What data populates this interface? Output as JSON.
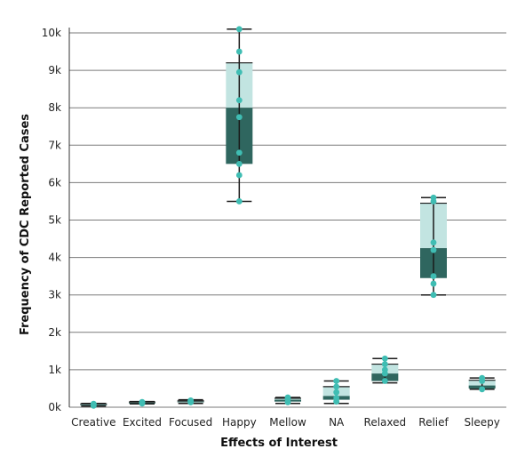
{
  "chart_data": {
    "type": "box",
    "xlabel": "Effects of Interest",
    "ylabel": "Frequency of CDC Reported Cases",
    "ylim": [
      0,
      10000
    ],
    "yticks": [
      {
        "value": 0,
        "label": "0k"
      },
      {
        "value": 1000,
        "label": "1k"
      },
      {
        "value": 2000,
        "label": "2k"
      },
      {
        "value": 3000,
        "label": "3k"
      },
      {
        "value": 4000,
        "label": "4k"
      },
      {
        "value": 5000,
        "label": "5k"
      },
      {
        "value": 6000,
        "label": "6k"
      },
      {
        "value": 7000,
        "label": "7k"
      },
      {
        "value": 8000,
        "label": "8k"
      },
      {
        "value": 9000,
        "label": "9k"
      },
      {
        "value": 10000,
        "label": "10k"
      }
    ],
    "grid": true,
    "categories": [
      "Creative",
      "Excited",
      "Focused",
      "Happy",
      "Mellow",
      "NA",
      "Relaxed",
      "Relief",
      "Sleepy"
    ],
    "boxes": [
      {
        "category": "Creative",
        "min": 30,
        "q1": 50,
        "median": 70,
        "q3": 90,
        "max": 100,
        "points": [
          40,
          60,
          80,
          90
        ]
      },
      {
        "category": "Excited",
        "min": 90,
        "q1": 100,
        "median": 120,
        "q3": 140,
        "max": 150,
        "points": [
          100,
          120,
          130,
          140
        ]
      },
      {
        "category": "Focused",
        "min": 100,
        "q1": 130,
        "median": 150,
        "q3": 170,
        "max": 200,
        "points": [
          130,
          150,
          170,
          180
        ]
      },
      {
        "category": "Happy",
        "min": 5500,
        "q1": 6500,
        "median": 8000,
        "q3": 9200,
        "max": 10100,
        "points": [
          10100,
          9500,
          8950,
          8200,
          7750,
          6800,
          6500,
          6200,
          5500
        ]
      },
      {
        "category": "Mellow",
        "min": 100,
        "q1": 150,
        "median": 200,
        "q3": 240,
        "max": 260,
        "points": [
          130,
          210,
          260
        ]
      },
      {
        "category": "NA",
        "min": 100,
        "q1": 200,
        "median": 300,
        "q3": 550,
        "max": 700,
        "points": [
          150,
          250,
          400,
          550,
          700
        ]
      },
      {
        "category": "Relaxed",
        "min": 650,
        "q1": 700,
        "median": 900,
        "q3": 1150,
        "max": 1300,
        "points": [
          700,
          900,
          1000,
          1150,
          1300
        ]
      },
      {
        "category": "Relief",
        "min": 3000,
        "q1": 3450,
        "median": 4250,
        "q3": 5450,
        "max": 5600,
        "points": [
          5600,
          5500,
          4400,
          4200,
          3500,
          3300,
          3000
        ]
      },
      {
        "category": "Sleepy",
        "min": 480,
        "q1": 500,
        "median": 580,
        "q3": 720,
        "max": 780,
        "points": [
          480,
          700,
          780
        ]
      }
    ],
    "colors": {
      "lower_box": "#2f665f",
      "upper_box": "#c2e4e1",
      "point": "#3fbdb3",
      "whisker": "#1a1a1a",
      "grid": "#7a7a7a",
      "text": "#111111"
    }
  }
}
